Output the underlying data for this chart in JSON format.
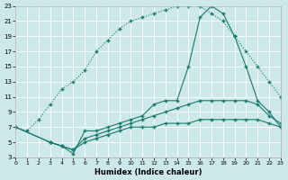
{
  "xlabel": "Humidex (Indice chaleur)",
  "bg_color": "#cce8e8",
  "grid_color": "#ffffff",
  "line_color": "#1a7a6e",
  "xlim": [
    0,
    23
  ],
  "ylim": [
    3,
    23
  ],
  "xticks": [
    0,
    1,
    2,
    3,
    4,
    5,
    6,
    7,
    8,
    9,
    10,
    11,
    12,
    13,
    14,
    15,
    16,
    17,
    18,
    19,
    20,
    21,
    22,
    23
  ],
  "yticks": [
    3,
    5,
    7,
    9,
    11,
    13,
    15,
    17,
    19,
    21,
    23
  ],
  "curve_dotted_x": [
    0,
    1,
    2,
    3,
    4,
    5,
    6,
    7,
    8,
    9,
    10,
    11,
    12,
    13,
    14,
    15,
    16,
    17,
    18,
    19,
    20,
    21,
    22,
    23
  ],
  "curve_dotted_y": [
    7,
    6.5,
    8,
    10,
    12,
    13,
    14.5,
    17,
    18.5,
    20,
    21,
    21.5,
    22,
    22.5,
    23,
    23,
    23,
    22,
    21,
    19,
    17,
    15,
    13,
    11
  ],
  "curve_solid_main_x": [
    0,
    3,
    4,
    5,
    6,
    7,
    8,
    9,
    10,
    11,
    12,
    13,
    14,
    15,
    16,
    17,
    18,
    19,
    20,
    21,
    22,
    23
  ],
  "curve_solid_main_y": [
    7,
    5,
    4.5,
    3.5,
    6.5,
    6.5,
    7,
    7.5,
    8,
    8.5,
    10,
    10.5,
    10.5,
    15,
    21.5,
    23,
    22,
    19,
    15,
    10.5,
    9,
    7
  ],
  "curve_flat_low_x": [
    0,
    3,
    4,
    5,
    6,
    7,
    8,
    9,
    10,
    11,
    12,
    13,
    14,
    15,
    16,
    17,
    18,
    19,
    20,
    21,
    22,
    23
  ],
  "curve_flat_low_y": [
    7,
    5,
    4.5,
    4,
    5,
    5.5,
    6,
    6.5,
    7,
    7,
    7,
    7.5,
    7.5,
    7.5,
    8,
    8,
    8,
    8,
    8,
    8,
    7.5,
    7
  ],
  "curve_mid_x": [
    3,
    4,
    5,
    6,
    7,
    8,
    9,
    10,
    11,
    12,
    13,
    14,
    15,
    16,
    17,
    18,
    19,
    20,
    21,
    22,
    23
  ],
  "curve_mid_y": [
    5,
    4.5,
    4,
    5.5,
    6,
    6.5,
    7,
    7.5,
    8,
    8.5,
    9,
    9.5,
    10,
    10.5,
    10.5,
    10.5,
    10.5,
    10.5,
    10,
    8.5,
    7.5
  ]
}
